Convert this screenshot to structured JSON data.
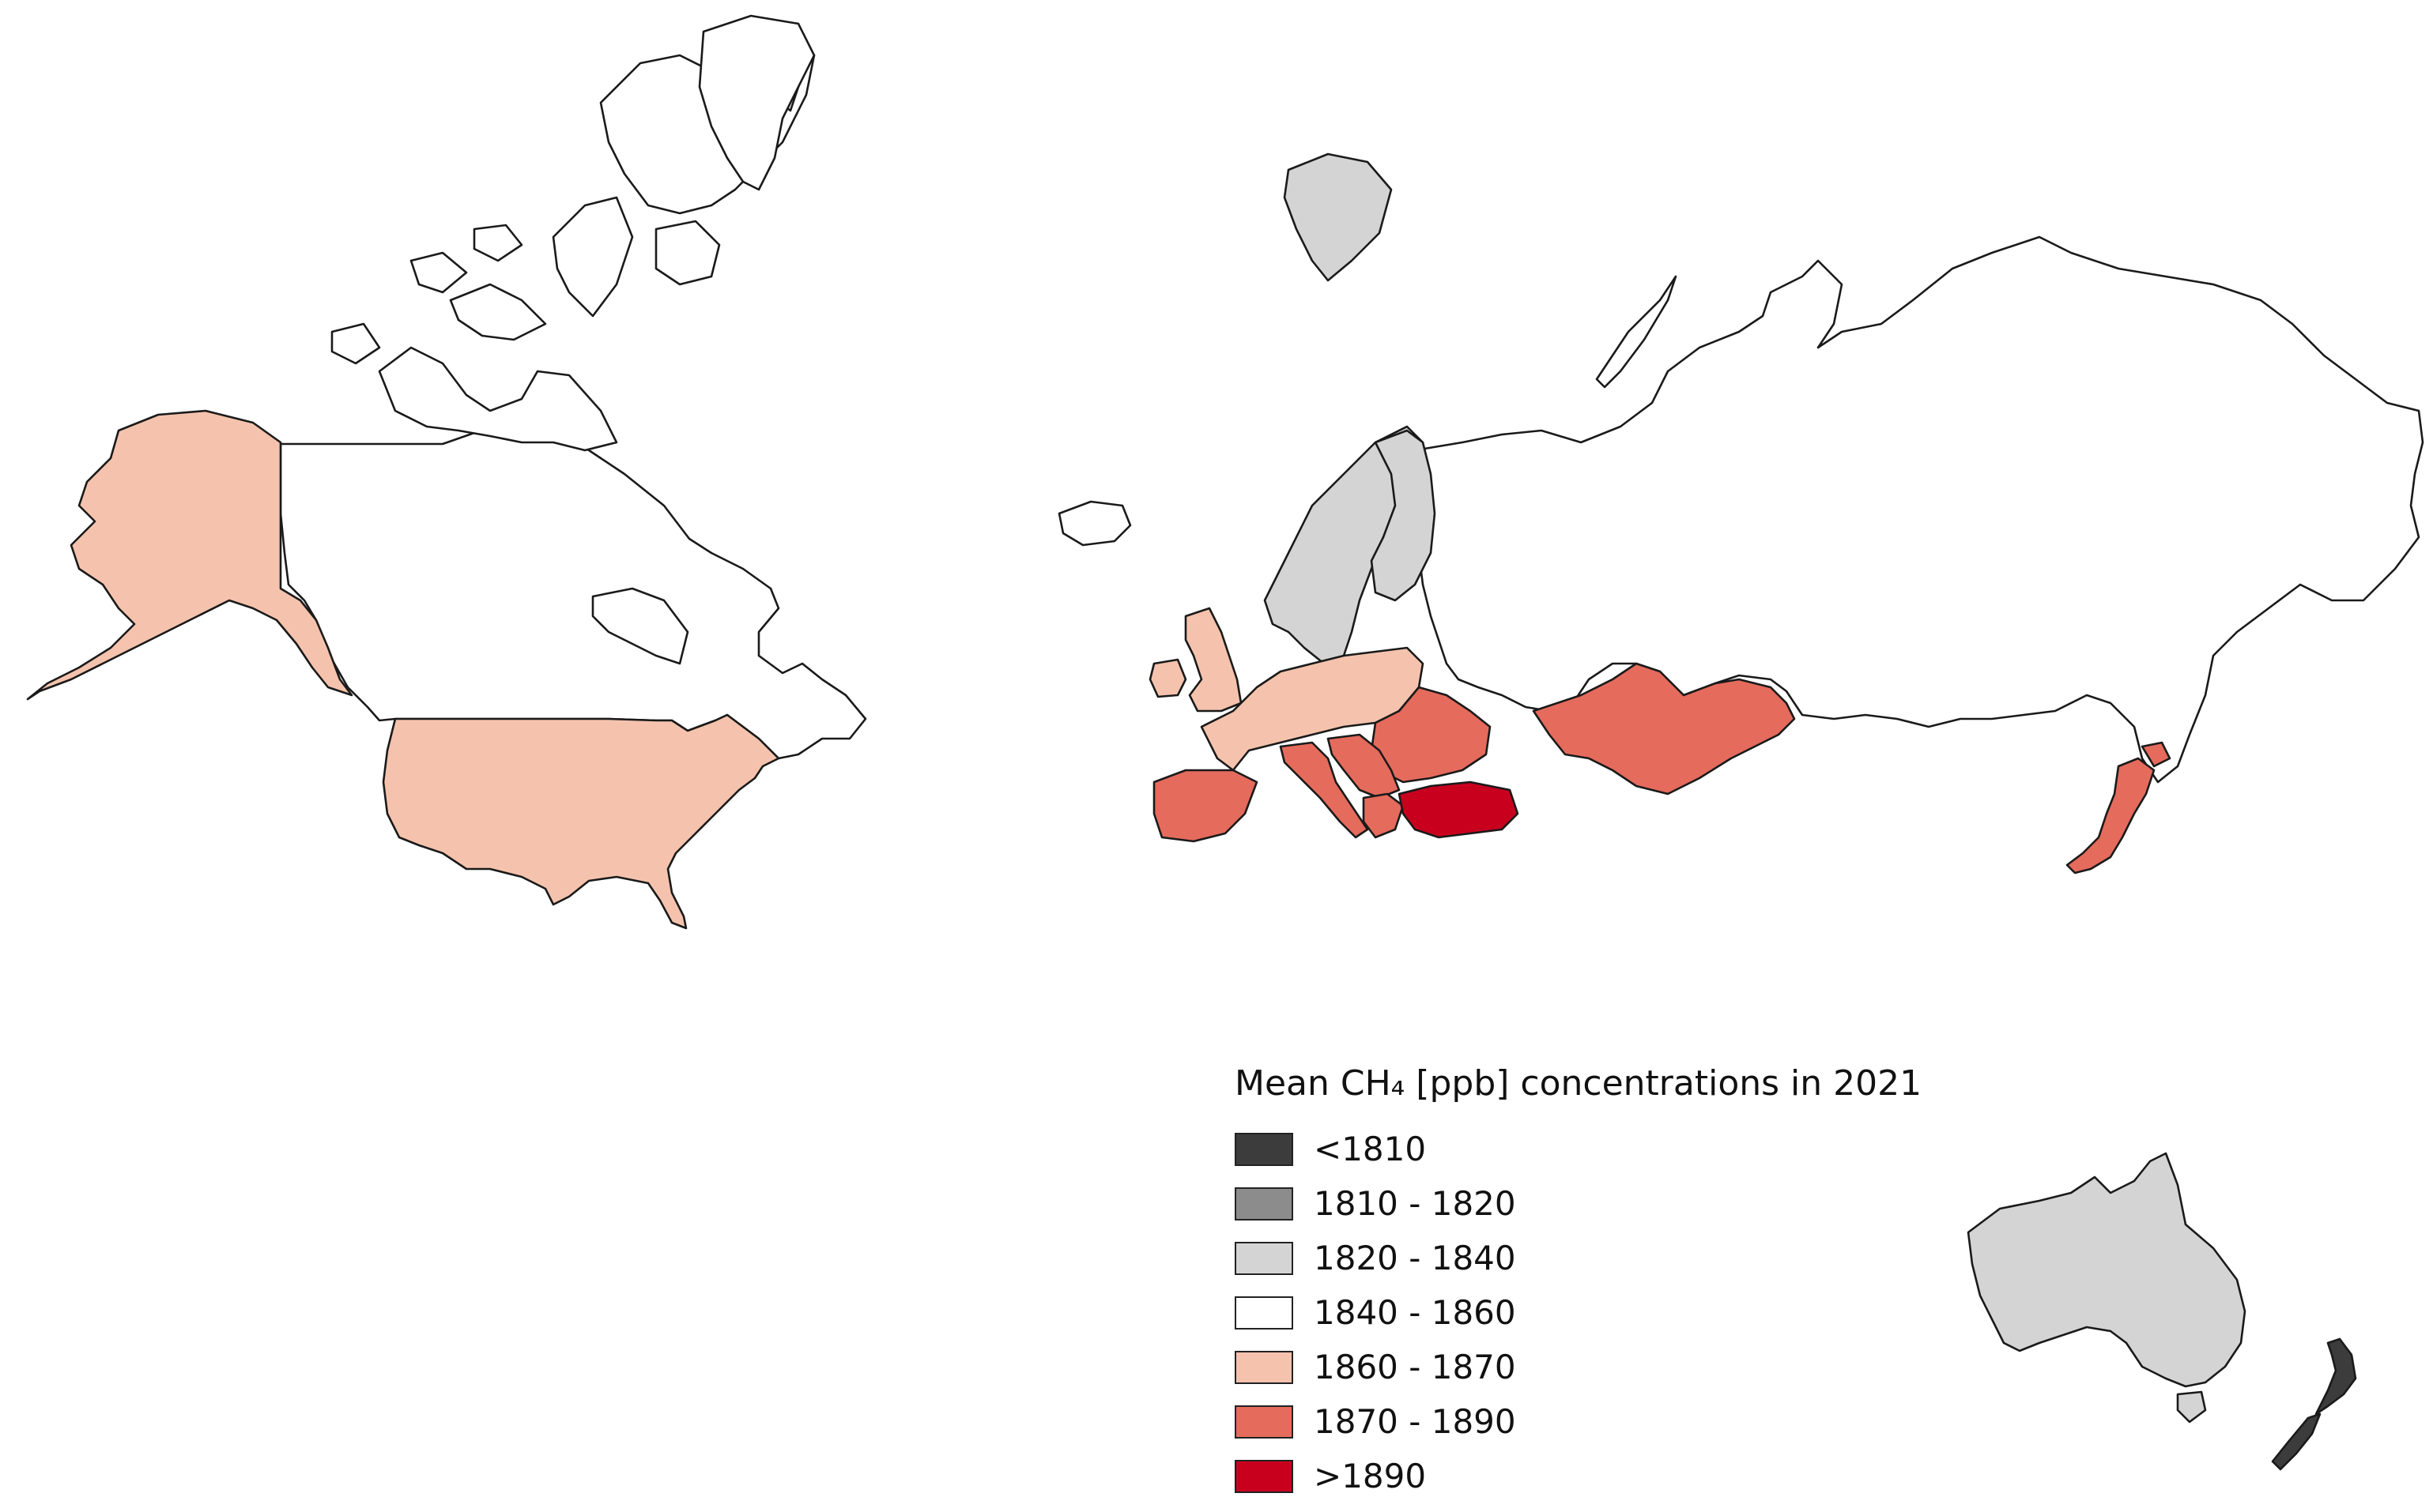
{
  "legend": {
    "title": "Mean CH₄ [ppb] concentrations in 2021",
    "classes": [
      {
        "label": "<1810",
        "color": "#3c3c3c"
      },
      {
        "label": "1810 - 1820",
        "color": "#8c8c8c"
      },
      {
        "label": "1820 - 1840",
        "color": "#d4d4d4"
      },
      {
        "label": "1840 - 1860",
        "color": "#ffffff"
      },
      {
        "label": "1860 - 1870",
        "color": "#f5c3ad"
      },
      {
        "label": "1870 - 1890",
        "color": "#e56b5d"
      },
      {
        "label": ">1890",
        "color": "#c8001e"
      }
    ]
  },
  "regions": [
    {
      "name": "canada",
      "class": 3
    },
    {
      "name": "alaska",
      "class": 4
    },
    {
      "name": "usa",
      "class": 4
    },
    {
      "name": "greenland",
      "class": 3
    },
    {
      "name": "iceland",
      "class": 3
    },
    {
      "name": "svalbard",
      "class": 2
    },
    {
      "name": "scandinavia",
      "class": 2
    },
    {
      "name": "finland",
      "class": 2
    },
    {
      "name": "uk",
      "class": 4
    },
    {
      "name": "ireland",
      "class": 4
    },
    {
      "name": "central-europe",
      "class": 4
    },
    {
      "name": "eastern-europe",
      "class": 5
    },
    {
      "name": "iberia",
      "class": 5
    },
    {
      "name": "italy",
      "class": 5
    },
    {
      "name": "balkans",
      "class": 5
    },
    {
      "name": "greece",
      "class": 5
    },
    {
      "name": "turkey",
      "class": 6
    },
    {
      "name": "kazakhstan",
      "class": 5
    },
    {
      "name": "russia",
      "class": 3
    },
    {
      "name": "japan",
      "class": 5
    },
    {
      "name": "australia",
      "class": 2
    },
    {
      "name": "tasmania",
      "class": 2
    },
    {
      "name": "new-zealand",
      "class": 0
    }
  ]
}
